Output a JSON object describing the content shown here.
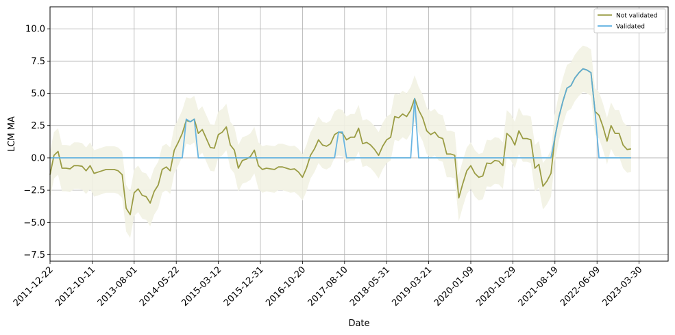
{
  "chart_data": {
    "type": "line",
    "title": "",
    "xlabel": "Date",
    "ylabel": "LCM MA",
    "grid": true,
    "legend_position": "top-right",
    "x_ticks": [
      "2011-12-22",
      "2012-10-11",
      "2013-08-01",
      "2014-05-22",
      "2015-03-12",
      "2015-12-31",
      "2016-10-20",
      "2017-08-10",
      "2018-05-31",
      "2019-03-21",
      "2020-01-09",
      "2020-10-29",
      "2021-08-19",
      "2022-06-09",
      "2023-03-30"
    ],
    "y_ticks": [
      "−7.5",
      "−5.0",
      "−2.5",
      "0.0",
      "2.5",
      "5.0",
      "7.5",
      "10.0"
    ],
    "ylim": [
      -8.0,
      11.7
    ],
    "x_range": [
      "2011-12-22",
      "2023-10-19"
    ],
    "x_interval_weeks": 4,
    "series": [
      {
        "name": "Not validated",
        "color": "#9a9c44",
        "band_color": "#f2f2e3",
        "band_halfwidth": 1.8,
        "values": [
          -1.3,
          0.2,
          0.5,
          -0.8,
          -0.8,
          -0.85,
          -0.6,
          -0.6,
          -0.65,
          -1.0,
          -0.6,
          -1.2,
          -1.1,
          -1.0,
          -0.9,
          -0.9,
          -0.9,
          -1.0,
          -1.3,
          -3.9,
          -4.4,
          -2.7,
          -2.4,
          -2.9,
          -3.0,
          -3.5,
          -2.6,
          -2.1,
          -0.9,
          -0.7,
          -1.0,
          0.6,
          1.2,
          1.9,
          2.9,
          2.8,
          3.0,
          1.9,
          2.2,
          1.5,
          0.8,
          0.75,
          1.8,
          2.0,
          2.4,
          1.0,
          0.6,
          -0.8,
          -0.2,
          -0.1,
          0.1,
          0.6,
          -0.6,
          -0.9,
          -0.8,
          -0.85,
          -0.9,
          -0.7,
          -0.7,
          -0.8,
          -0.9,
          -0.85,
          -1.1,
          -1.5,
          -0.8,
          0.2,
          0.7,
          1.4,
          1.0,
          0.9,
          1.1,
          1.8,
          2.0,
          1.9,
          1.4,
          1.6,
          1.6,
          2.3,
          1.1,
          1.2,
          1.0,
          0.65,
          0.2,
          0.9,
          1.4,
          1.6,
          3.2,
          3.1,
          3.4,
          3.2,
          3.7,
          4.6,
          3.7,
          3.1,
          2.1,
          1.8,
          2.0,
          1.6,
          1.5,
          0.3,
          0.3,
          0.2,
          -3.1,
          -2.0,
          -1.0,
          -0.6,
          -1.2,
          -1.5,
          -1.4,
          -0.4,
          -0.45,
          -0.2,
          -0.25,
          -0.6,
          1.9,
          1.6,
          1.0,
          2.1,
          1.5,
          1.5,
          1.4,
          -0.8,
          -0.5,
          -2.2,
          -1.8,
          -1.2,
          1.6,
          3.2,
          4.4,
          5.4,
          5.6,
          6.2,
          6.6,
          6.9,
          6.8,
          6.6,
          3.6,
          3.3,
          2.4,
          1.3,
          2.5,
          1.9,
          1.9,
          1.0,
          0.65,
          0.7
        ]
      },
      {
        "name": "Validated",
        "color": "#5aaee0",
        "values": [
          0,
          0,
          0,
          0,
          0,
          0,
          0,
          0,
          0,
          0,
          0,
          0,
          0,
          0,
          0,
          0,
          0,
          0,
          0,
          0,
          0,
          0,
          0,
          0,
          0,
          0,
          0,
          0,
          0,
          0,
          0,
          0,
          0,
          0,
          3.0,
          2.8,
          3.0,
          0,
          0,
          0,
          0,
          0,
          0,
          0,
          0,
          0,
          0,
          0,
          0,
          0,
          0,
          0,
          0,
          0,
          0,
          0,
          0,
          0,
          0,
          0,
          0,
          0,
          0,
          0,
          0,
          0,
          0,
          0,
          0,
          0,
          0,
          0,
          2.0,
          2.0,
          0,
          0,
          0,
          0,
          0,
          0,
          0,
          0,
          0,
          0,
          0,
          0,
          0,
          0,
          0,
          0,
          0,
          4.6,
          0,
          0,
          0,
          0,
          0,
          0,
          0,
          0,
          0,
          0,
          0,
          0,
          0,
          0,
          0,
          0,
          0,
          0,
          0,
          0,
          0,
          0,
          0,
          0,
          0,
          0,
          0,
          0,
          0,
          0,
          0,
          0,
          0,
          0,
          1.6,
          3.2,
          4.4,
          5.4,
          5.6,
          6.2,
          6.6,
          6.9,
          6.8,
          6.6,
          3.6,
          0,
          0,
          0,
          0,
          0,
          0,
          0,
          0,
          0
        ]
      }
    ]
  }
}
